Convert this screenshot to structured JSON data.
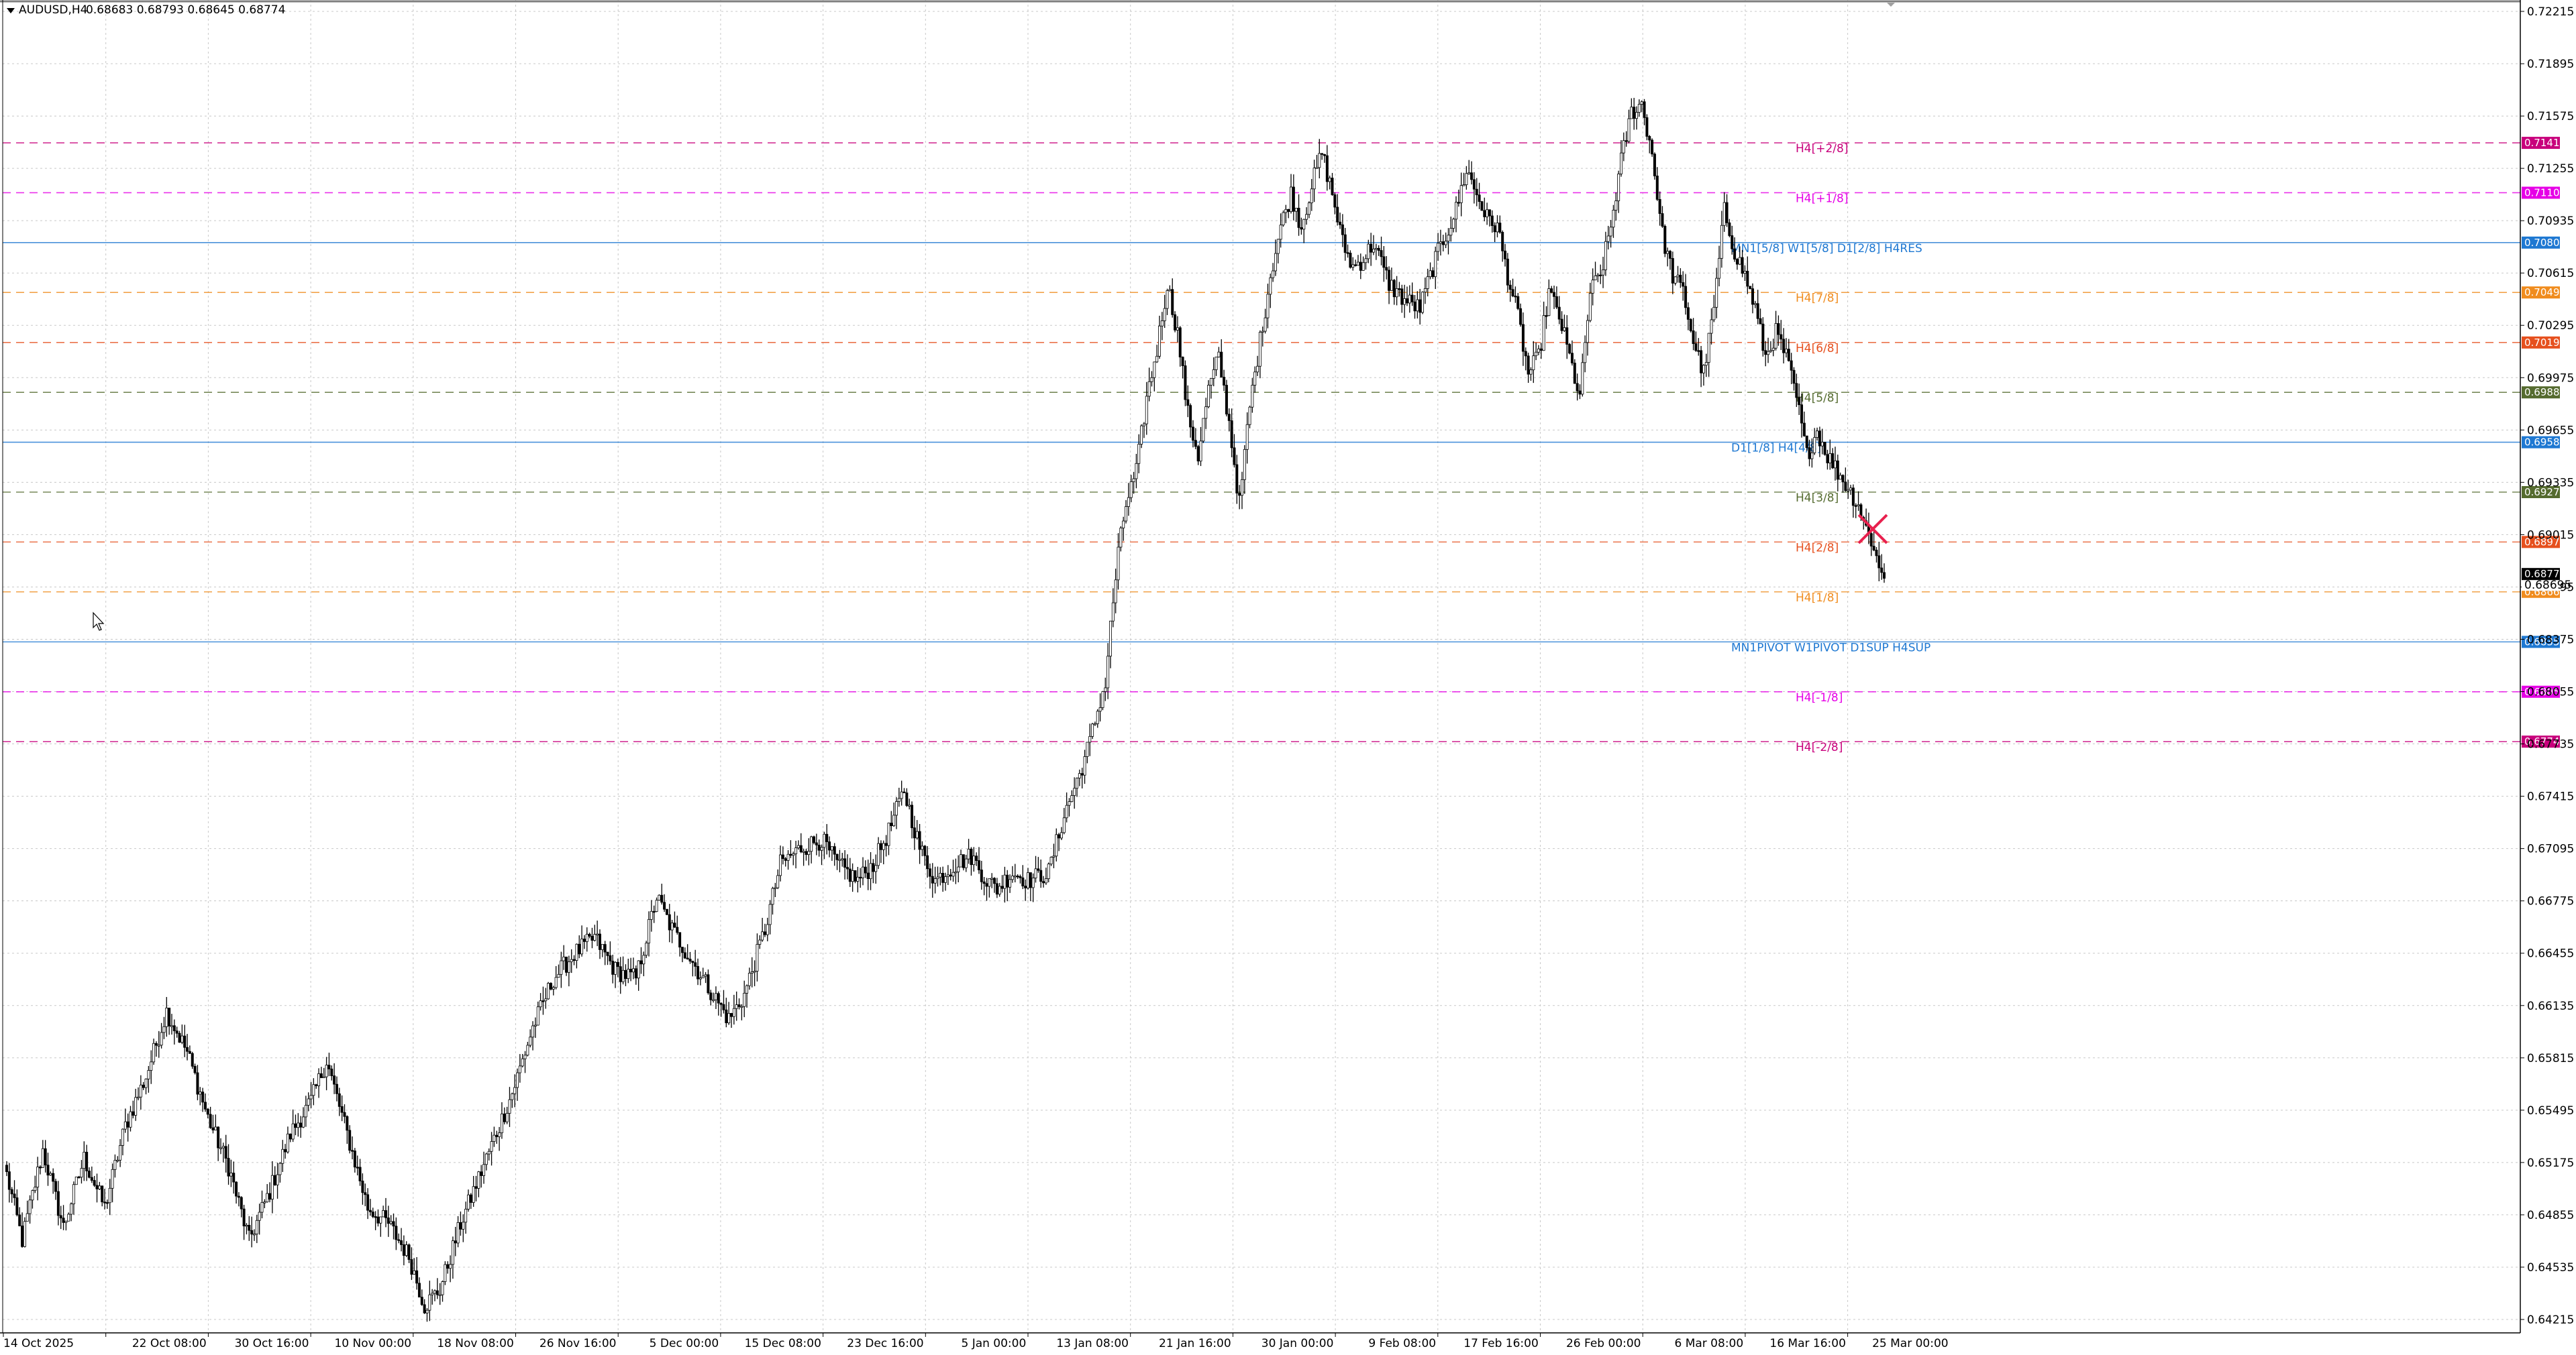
{
  "header": {
    "symbol": "AUDUSD,H4",
    "ohlc": "0.68683 0.68793 0.68645 0.68774"
  },
  "chart_data": {
    "type": "candlestick",
    "ylim": [
      0.64045,
      0.72255
    ],
    "y_ticks": [
      "0.72215",
      "0.71895",
      "0.71575",
      "0.71255",
      "0.70935",
      "0.70615",
      "0.70295",
      "0.69975",
      "0.69655",
      "0.69335",
      "0.69015",
      "0.68695",
      "0.68375",
      "0.68055",
      "0.67735",
      "0.67415",
      "0.67095",
      "0.66775",
      "0.66455",
      "0.66135",
      "0.65815",
      "0.65495",
      "0.65175",
      "0.64855",
      "0.64535",
      "0.64215"
    ],
    "x_ticks": [
      "14 Oct 2025",
      "22 Oct 08:00",
      "30 Oct 16:00",
      "10 Nov 00:00",
      "18 Nov 08:00",
      "26 Nov 16:00",
      "5 Dec 00:00",
      "15 Dec 08:00",
      "23 Dec 16:00",
      "5 Jan 00:00",
      "13 Jan 08:00",
      "21 Jan 16:00",
      "30 Jan 00:00",
      "9 Feb 08:00",
      "17 Feb 16:00",
      "26 Feb 00:00",
      "6 Mar 08:00",
      "16 Mar 16:00",
      "25 Mar 00:00"
    ],
    "current_price": "0.68774",
    "current_price_value": 0.68774,
    "hidden_badge": "0.68695",
    "anchors": [
      [
        0,
        0.651
      ],
      [
        6,
        0.647
      ],
      [
        14,
        0.6525
      ],
      [
        22,
        0.6478
      ],
      [
        30,
        0.652
      ],
      [
        38,
        0.649
      ],
      [
        46,
        0.654
      ],
      [
        54,
        0.657
      ],
      [
        62,
        0.661
      ],
      [
        70,
        0.6585
      ],
      [
        78,
        0.6545
      ],
      [
        86,
        0.6515
      ],
      [
        94,
        0.647
      ],
      [
        102,
        0.65
      ],
      [
        110,
        0.6535
      ],
      [
        118,
        0.6555
      ],
      [
        124,
        0.658
      ],
      [
        132,
        0.6535
      ],
      [
        140,
        0.649
      ],
      [
        148,
        0.648
      ],
      [
        156,
        0.646
      ],
      [
        162,
        0.643
      ],
      [
        168,
        0.644
      ],
      [
        176,
        0.648
      ],
      [
        186,
        0.652
      ],
      [
        196,
        0.656
      ],
      [
        204,
        0.66
      ],
      [
        212,
        0.663
      ],
      [
        220,
        0.6645
      ],
      [
        228,
        0.6655
      ],
      [
        236,
        0.6635
      ],
      [
        244,
        0.663
      ],
      [
        252,
        0.668
      ],
      [
        258,
        0.666
      ],
      [
        266,
        0.664
      ],
      [
        274,
        0.662
      ],
      [
        280,
        0.6605
      ],
      [
        286,
        0.662
      ],
      [
        294,
        0.666
      ],
      [
        300,
        0.67
      ],
      [
        308,
        0.671
      ],
      [
        316,
        0.6715
      ],
      [
        322,
        0.67
      ],
      [
        330,
        0.669
      ],
      [
        336,
        0.67
      ],
      [
        342,
        0.672
      ],
      [
        348,
        0.6745
      ],
      [
        354,
        0.671
      ],
      [
        360,
        0.669
      ],
      [
        368,
        0.67
      ],
      [
        374,
        0.6705
      ],
      [
        380,
        0.669
      ],
      [
        384,
        0.6685
      ],
      [
        390,
        0.6695
      ],
      [
        396,
        0.669
      ],
      [
        404,
        0.6695
      ],
      [
        410,
        0.673
      ],
      [
        416,
        0.6755
      ],
      [
        420,
        0.6775
      ],
      [
        424,
        0.68
      ],
      [
        426,
        0.681
      ],
      [
        428,
        0.6845
      ],
      [
        431,
        0.689
      ],
      [
        434,
        0.692
      ],
      [
        438,
        0.694
      ],
      [
        442,
        0.6985
      ],
      [
        446,
        0.7015
      ],
      [
        450,
        0.7055
      ],
      [
        454,
        0.7025
      ],
      [
        458,
        0.6975
      ],
      [
        462,
        0.695
      ],
      [
        466,
        0.699
      ],
      [
        470,
        0.701
      ],
      [
        474,
        0.697
      ],
      [
        478,
        0.692
      ],
      [
        482,
        0.698
      ],
      [
        486,
        0.702
      ],
      [
        490,
        0.706
      ],
      [
        494,
        0.709
      ],
      [
        498,
        0.711
      ],
      [
        502,
        0.709
      ],
      [
        506,
        0.7115
      ],
      [
        510,
        0.7135
      ],
      [
        514,
        0.711
      ],
      [
        518,
        0.708
      ],
      [
        522,
        0.7065
      ],
      [
        526,
        0.707
      ],
      [
        530,
        0.708
      ],
      [
        536,
        0.7055
      ],
      [
        542,
        0.7045
      ],
      [
        548,
        0.704
      ],
      [
        554,
        0.707
      ],
      [
        558,
        0.7085
      ],
      [
        562,
        0.71
      ],
      [
        566,
        0.7125
      ],
      [
        570,
        0.711
      ],
      [
        574,
        0.7095
      ],
      [
        578,
        0.709
      ],
      [
        582,
        0.706
      ],
      [
        586,
        0.7035
      ],
      [
        590,
        0.7
      ],
      [
        594,
        0.701
      ],
      [
        598,
        0.705
      ],
      [
        602,
        0.7035
      ],
      [
        606,
        0.701
      ],
      [
        610,
        0.6985
      ],
      [
        614,
        0.705
      ],
      [
        618,
        0.706
      ],
      [
        622,
        0.709
      ],
      [
        626,
        0.713
      ],
      [
        630,
        0.716
      ],
      [
        634,
        0.7165
      ],
      [
        638,
        0.7135
      ],
      [
        642,
        0.7085
      ],
      [
        646,
        0.706
      ],
      [
        650,
        0.705
      ],
      [
        654,
        0.702
      ],
      [
        658,
        0.7
      ],
      [
        662,
        0.704
      ],
      [
        666,
        0.71
      ],
      [
        670,
        0.7075
      ],
      [
        674,
        0.706
      ],
      [
        678,
        0.704
      ],
      [
        682,
        0.701
      ],
      [
        686,
        0.7025
      ],
      [
        690,
        0.701
      ],
      [
        694,
        0.6985
      ],
      [
        698,
        0.695
      ],
      [
        702,
        0.6965
      ],
      [
        706,
        0.695
      ],
      [
        710,
        0.694
      ],
      [
        714,
        0.693
      ],
      [
        718,
        0.692
      ],
      [
        721,
        0.6905
      ],
      [
        724,
        0.6895
      ],
      [
        726,
        0.688
      ],
      [
        728,
        0.6877
      ]
    ],
    "levels": [
      {
        "price": 0.71411,
        "label": "H4[+2/8]",
        "badge": "0.71411",
        "color": "#c8007c",
        "style": "dash"
      },
      {
        "price": 0.71106,
        "label": "H4[+1/8]",
        "badge": "0.71106",
        "color": "#e600e6",
        "style": "dash"
      },
      {
        "price": 0.70801,
        "label": "MN1[5/8] W1[5/8] D1[2/8] H4RES",
        "badge": "0.70801",
        "color": "#1e78d2",
        "style": "solid"
      },
      {
        "price": 0.70496,
        "label": "H4[7/8]",
        "badge": "0.70496",
        "color": "#f08c1e",
        "style": "dash"
      },
      {
        "price": 0.7019,
        "label": "H4[6/8]",
        "badge": "0.70190",
        "color": "#e6501e",
        "style": "dash"
      },
      {
        "price": 0.69885,
        "label": "H4[5/8]",
        "badge": "0.69885",
        "color": "#556b2f",
        "style": "dash"
      },
      {
        "price": 0.6958,
        "label": "D1[1/8] H4[4/8]",
        "badge": "0.69580",
        "color": "#1e78d2",
        "style": "solid"
      },
      {
        "price": 0.69275,
        "label": "H4[3/8]",
        "badge": "0.69275",
        "color": "#556b2f",
        "style": "dash"
      },
      {
        "price": 0.6897,
        "label": "H4[2/8]",
        "badge": "0.68970",
        "color": "#e6501e",
        "style": "dash"
      },
      {
        "price": 0.68665,
        "label": "H4[1/8]",
        "badge": "0.68665",
        "color": "#f08c1e",
        "style": "dash"
      },
      {
        "price": 0.68359,
        "label": "MN1PIVOT W1PIVOT D1SUP H4SUP",
        "badge": "0.68359",
        "color": "#1e78d2",
        "style": "solid"
      },
      {
        "price": 0.68054,
        "label": "H4[-1/8]",
        "badge": "0.68054",
        "color": "#e600e6",
        "style": "dash"
      },
      {
        "price": 0.67749,
        "label": "H4[-2/8]",
        "badge": "0.67749",
        "color": "#c8007c",
        "style": "dash"
      }
    ]
  }
}
